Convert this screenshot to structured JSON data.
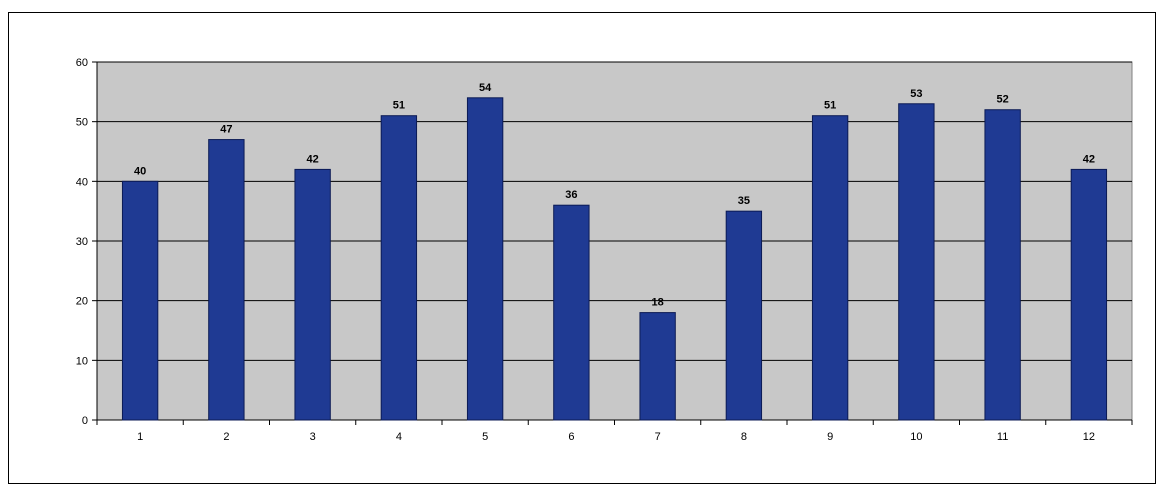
{
  "chart_data": {
    "type": "bar",
    "title": "",
    "xlabel": "",
    "ylabel": "",
    "categories": [
      "1",
      "2",
      "3",
      "4",
      "5",
      "6",
      "7",
      "8",
      "9",
      "10",
      "11",
      "12"
    ],
    "values": [
      40,
      47,
      42,
      51,
      54,
      36,
      18,
      35,
      51,
      53,
      52,
      42
    ],
    "ylim": [
      0,
      60
    ],
    "yticks": [
      0,
      10,
      20,
      30,
      40,
      50,
      60
    ],
    "grid": true,
    "data_labels": true,
    "legend": "none",
    "colors": {
      "bar": "#1f3a93",
      "bar_edge": "#0b1a55",
      "plot_background": "#c8c8c8",
      "gridline": "#000000"
    }
  }
}
